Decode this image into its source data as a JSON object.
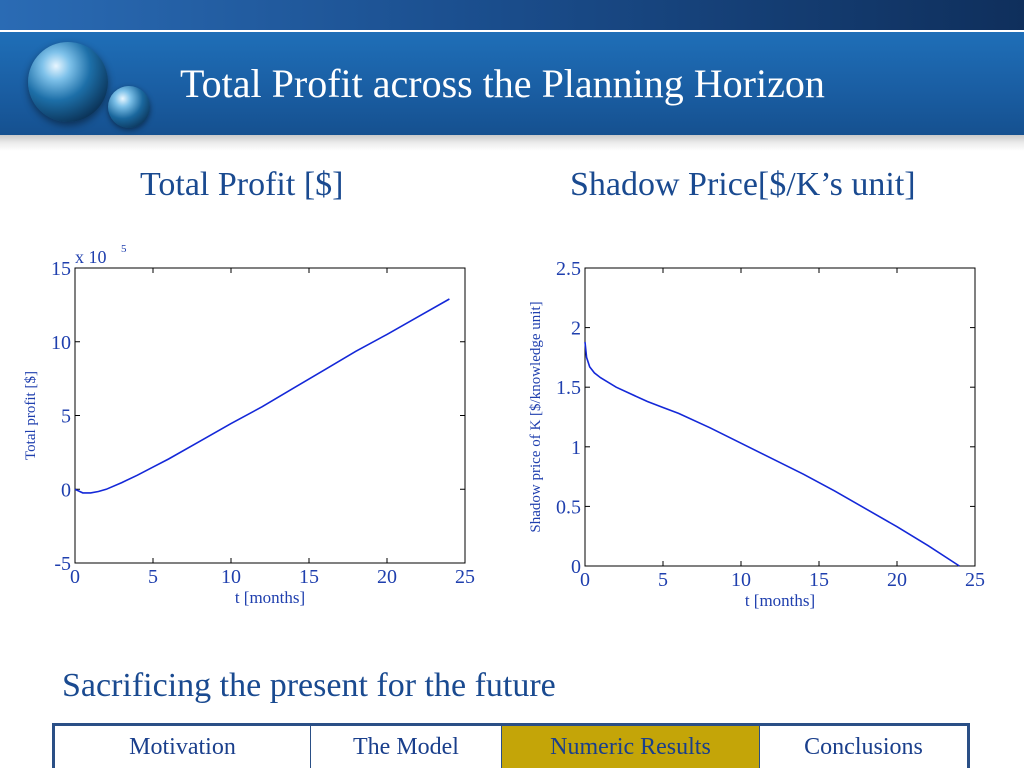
{
  "slide": {
    "title": "Total Profit across the Planning Horizon",
    "left_heading": "Total Profit [$]",
    "right_heading": "Shadow Price[$/K’s unit]",
    "subtitle": "Sacrificing the present for the future"
  },
  "nav": {
    "items": [
      {
        "label": "Motivation",
        "active": false
      },
      {
        "label": "The Model",
        "active": false
      },
      {
        "label": "Numeric Results",
        "active": true
      },
      {
        "label": "Conclusions",
        "active": false
      }
    ],
    "active_color": "#c4a508"
  },
  "colors": {
    "header": "#1a5ea3",
    "heading_text": "#1a4a90",
    "line": "#1428d8"
  },
  "chart_data": [
    {
      "type": "line",
      "xlabel": "t [months]",
      "ylabel": "Total profit [$]",
      "scale_note": "x 10",
      "scale_exponent": "5",
      "xlim": [
        0,
        25
      ],
      "ylim": [
        -5,
        15
      ],
      "xticks": [
        "0",
        "5",
        "10",
        "15",
        "20",
        "25"
      ],
      "yticks": [
        "-5",
        "0",
        "5",
        "10",
        "15"
      ],
      "series": [
        {
          "x": [
            0,
            0.5,
            1,
            1.5,
            2,
            3,
            4,
            5,
            6,
            8,
            10,
            12,
            14,
            16,
            18,
            20,
            22,
            24
          ],
          "values": [
            0,
            -0.25,
            -0.25,
            -0.15,
            0,
            0.45,
            0.95,
            1.5,
            2.05,
            3.25,
            4.45,
            5.6,
            6.85,
            8.1,
            9.35,
            10.5,
            11.7,
            12.9
          ]
        }
      ]
    },
    {
      "type": "line",
      "xlabel": "t [months]",
      "ylabel": "Shadow price of K [$/knowledge unit]",
      "xlim": [
        0,
        25
      ],
      "ylim": [
        0,
        2.5
      ],
      "xticks": [
        "0",
        "5",
        "10",
        "15",
        "20",
        "25"
      ],
      "yticks": [
        "0",
        "0.5",
        "1",
        "1.5",
        "2",
        "2.5"
      ],
      "series": [
        {
          "x": [
            0,
            0.1,
            0.3,
            0.6,
            1,
            2,
            3,
            4,
            5,
            6,
            8,
            10,
            12,
            14,
            16,
            18,
            20,
            22,
            24
          ],
          "values": [
            1.88,
            1.75,
            1.67,
            1.62,
            1.58,
            1.5,
            1.44,
            1.38,
            1.33,
            1.28,
            1.16,
            1.03,
            0.9,
            0.77,
            0.63,
            0.48,
            0.33,
            0.17,
            0.0
          ]
        }
      ]
    }
  ]
}
